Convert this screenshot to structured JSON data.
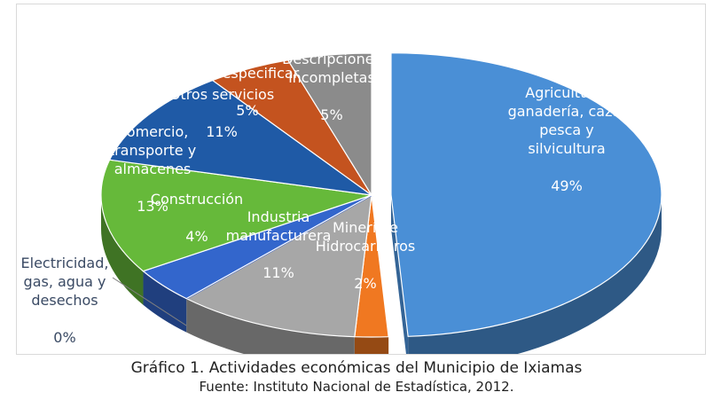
{
  "chart_data": {
    "type": "pie",
    "style": "3d-exploded",
    "slices": [
      {
        "label": "Agricultura,\nganadería, caza,\npesca y\nsilvicultura",
        "pct_label": "49%",
        "value": 49,
        "color": "#4a8fd6"
      },
      {
        "label": "Minería e\nHidrocarburos",
        "pct_label": "2%",
        "value": 2,
        "color": "#f07821"
      },
      {
        "label": "Industria\nmanufacturera",
        "pct_label": "11%",
        "value": 11,
        "color": "#a7a7a7"
      },
      {
        "label": "Electricidad,\ngas, agua y\ndesechos",
        "pct_label": "0%",
        "value": 0,
        "color": "#2f58c4"
      },
      {
        "label": "Construcción",
        "pct_label": "4%",
        "value": 4,
        "color": "#3366cc"
      },
      {
        "label": "Comercio,\ntransporte y\nalmacenes",
        "pct_label": "13%",
        "value": 13,
        "color": "#66b93a"
      },
      {
        "label": "Otros servicios",
        "pct_label": "11%",
        "value": 11,
        "color": "#1f5aa6"
      },
      {
        "label": "Sin especificar",
        "pct_label": "5%",
        "value": 5,
        "color": "#c4531f"
      },
      {
        "label": "Descripciones\nincompletas",
        "pct_label": "5%",
        "value": 5,
        "color": "#8b8b8b"
      }
    ]
  },
  "caption": {
    "title": "Gráfico 1. Actividades económicas del Municipio de Ixiamas",
    "source": "Fuente: Instituto Nacional de Estadística, 2012."
  }
}
